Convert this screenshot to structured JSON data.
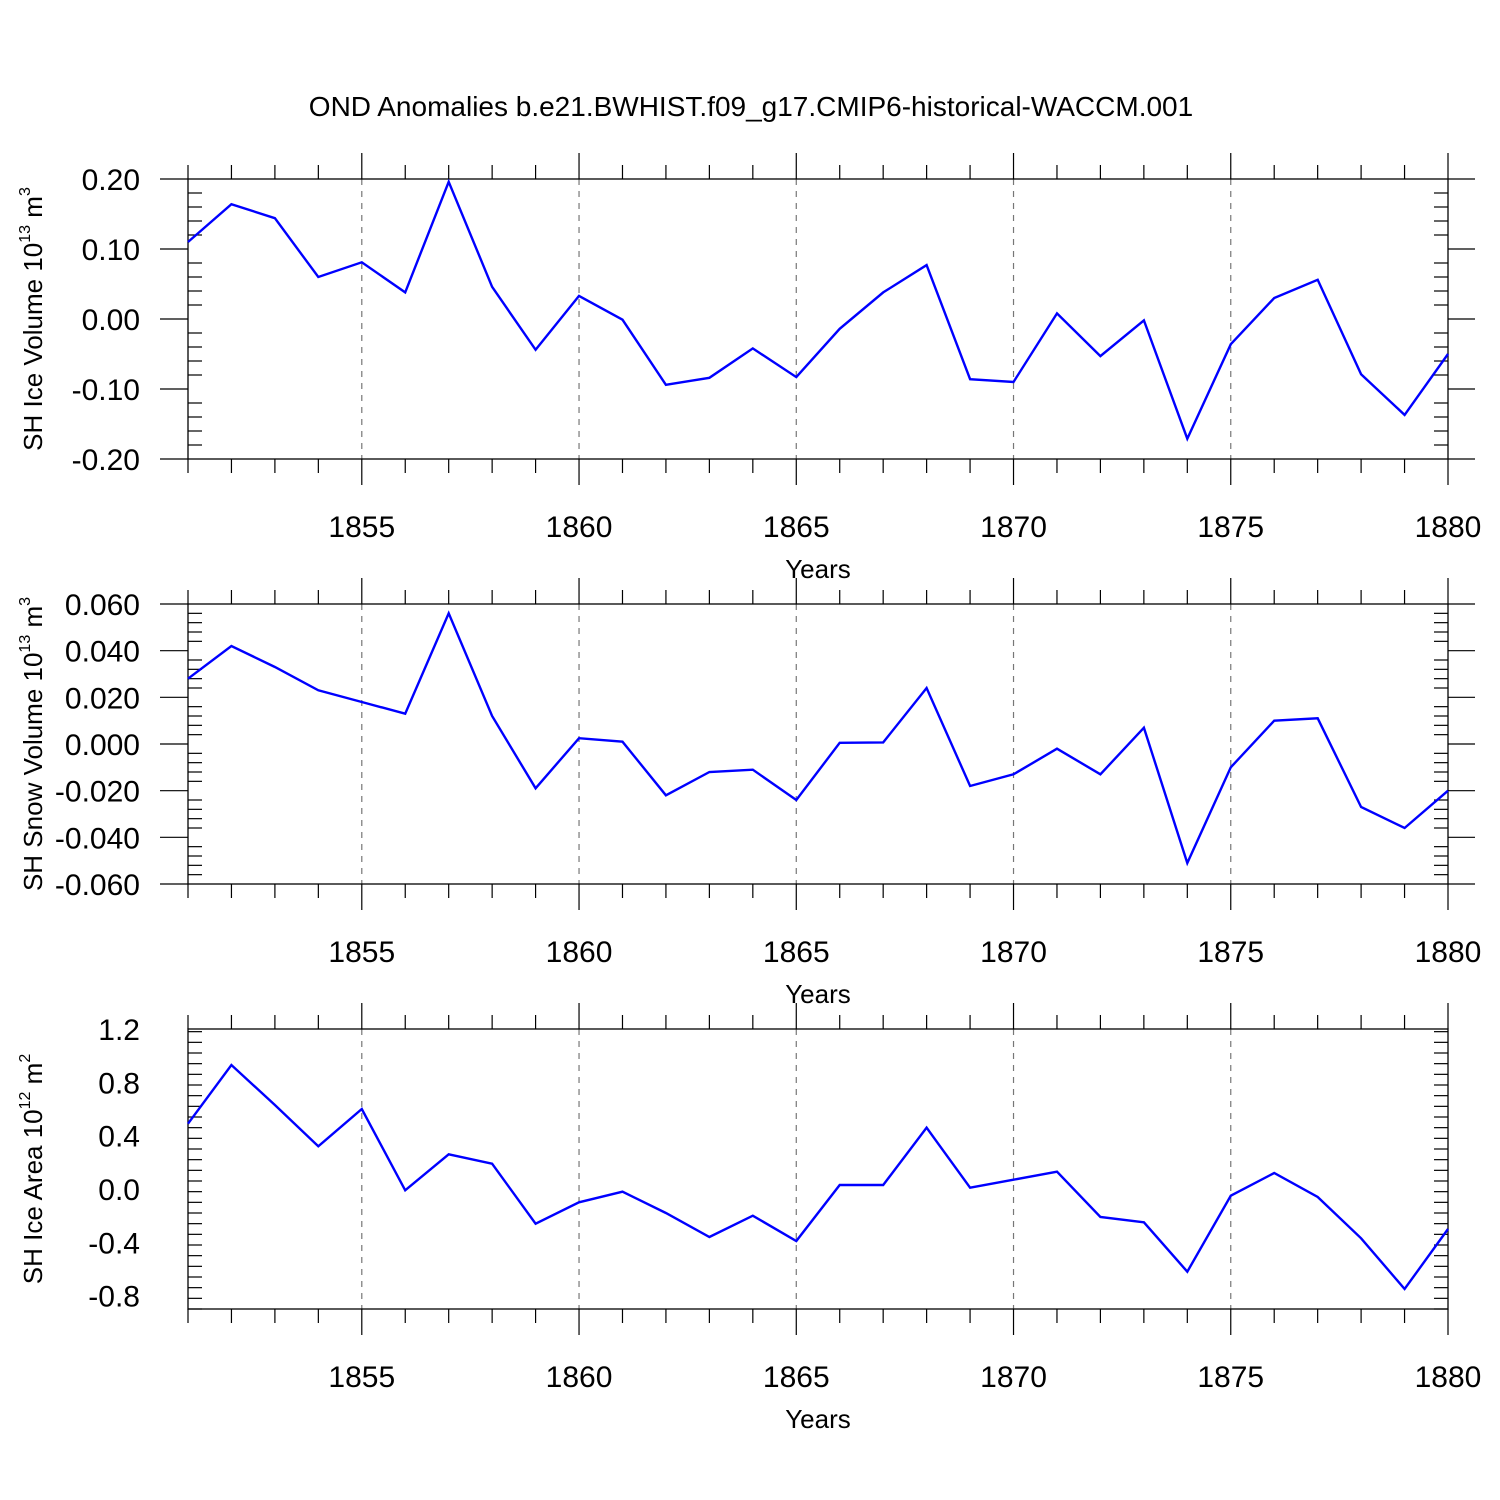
{
  "title": "OND Anomalies b.e21.BWHIST.f09_g17.CMIP6-historical-WACCM.001",
  "colors": {
    "line": "#0000ff",
    "grid": "#777777"
  },
  "chart_data": [
    {
      "type": "line",
      "title": "OND Anomalies b.e21.BWHIST.f09_g17.CMIP6-historical-WACCM.001",
      "xlabel": "Years",
      "ylabel": {
        "main": "SH Ice Volume 10",
        "sup": "13",
        "unit": " m",
        "unit_sup": "3"
      },
      "xlim": [
        1851,
        1880
      ],
      "ylim": [
        -0.2,
        0.2
      ],
      "xticks": [
        1855,
        1860,
        1865,
        1870,
        1875,
        1880
      ],
      "yticks": [
        -0.2,
        -0.1,
        0.0,
        0.1,
        0.2
      ],
      "ytick_labels": [
        "-0.20",
        "-0.10",
        "0.00",
        "0.10",
        "0.20"
      ],
      "grid": "vertical dashed at major x ticks",
      "x": [
        1851,
        1852,
        1853,
        1854,
        1855,
        1856,
        1857,
        1858,
        1859,
        1860,
        1861,
        1862,
        1863,
        1864,
        1865,
        1866,
        1867,
        1868,
        1869,
        1870,
        1871,
        1872,
        1873,
        1874,
        1875,
        1876,
        1877,
        1878,
        1879,
        1880
      ],
      "series": [
        {
          "values": [
            0.11,
            0.164,
            0.144,
            0.06,
            0.081,
            0.038,
            0.196,
            0.046,
            -0.044,
            0.033,
            -0.001,
            -0.094,
            -0.084,
            -0.042,
            -0.083,
            -0.014,
            0.038,
            0.077,
            -0.086,
            -0.09,
            0.008,
            -0.053,
            -0.002,
            -0.171,
            -0.036,
            0.03,
            0.056,
            -0.079,
            -0.137,
            -0.05
          ]
        }
      ]
    },
    {
      "type": "line",
      "xlabel": "Years",
      "ylabel": {
        "main": "SH Snow Volume 10",
        "sup": "13",
        "unit": " m",
        "unit_sup": "3"
      },
      "xlim": [
        1851,
        1880
      ],
      "ylim": [
        -0.06,
        0.06
      ],
      "xticks": [
        1855,
        1860,
        1865,
        1870,
        1875,
        1880
      ],
      "yticks": [
        -0.06,
        -0.04,
        -0.02,
        0.0,
        0.02,
        0.04,
        0.06
      ],
      "ytick_labels": [
        "-0.060",
        "-0.040",
        "-0.020",
        "0.000",
        "0.020",
        "0.040",
        "0.060"
      ],
      "grid": "vertical dashed at major x ticks",
      "x": [
        1851,
        1852,
        1853,
        1854,
        1855,
        1856,
        1857,
        1858,
        1859,
        1860,
        1861,
        1862,
        1863,
        1864,
        1865,
        1866,
        1867,
        1868,
        1869,
        1870,
        1871,
        1872,
        1873,
        1874,
        1875,
        1876,
        1877,
        1878,
        1879,
        1880
      ],
      "series": [
        {
          "values": [
            0.028,
            0.042,
            0.033,
            0.023,
            0.018,
            0.013,
            0.056,
            0.012,
            -0.019,
            0.0025,
            0.001,
            -0.022,
            -0.012,
            -0.011,
            -0.024,
            0.0005,
            0.0007,
            0.024,
            -0.018,
            -0.013,
            -0.002,
            -0.013,
            0.007,
            -0.051,
            -0.01,
            0.01,
            0.011,
            -0.027,
            -0.036,
            -0.02
          ]
        }
      ]
    },
    {
      "type": "line",
      "xlabel": "Years",
      "ylabel": {
        "main": "SH Ice Area 10",
        "sup": "12",
        "unit": " m",
        "unit_sup": "2"
      },
      "xlim": [
        1851,
        1880
      ],
      "ylim": [
        -0.9,
        1.2
      ],
      "xticks": [
        1855,
        1860,
        1865,
        1870,
        1875,
        1880
      ],
      "yticks": [
        -0.8,
        -0.4,
        0.0,
        0.4,
        0.8,
        1.2
      ],
      "ytick_labels": [
        "-0.8",
        "-0.4",
        "0.0",
        "0.4",
        "0.8",
        "1.2"
      ],
      "grid": "vertical dashed at major x ticks",
      "x": [
        1851,
        1852,
        1853,
        1854,
        1855,
        1856,
        1857,
        1858,
        1859,
        1860,
        1861,
        1862,
        1863,
        1864,
        1865,
        1866,
        1867,
        1868,
        1869,
        1870,
        1871,
        1872,
        1873,
        1874,
        1875,
        1876,
        1877,
        1878,
        1879,
        1880
      ],
      "series": [
        {
          "values": [
            0.49,
            0.93,
            0.63,
            0.32,
            0.6,
            -0.01,
            0.26,
            0.19,
            -0.26,
            -0.1,
            -0.02,
            -0.18,
            -0.36,
            -0.2,
            -0.39,
            0.03,
            0.03,
            0.46,
            0.01,
            0.07,
            0.13,
            -0.21,
            -0.25,
            -0.62,
            -0.05,
            0.12,
            -0.06,
            -0.37,
            -0.75,
            -0.3
          ]
        }
      ]
    }
  ]
}
